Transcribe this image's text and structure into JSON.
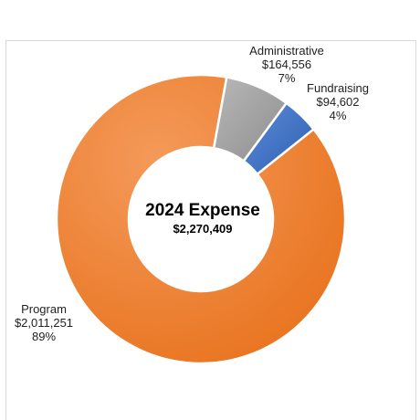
{
  "chart_data": {
    "type": "pie",
    "donut": true,
    "title": "2024 Expense",
    "total": "$2,270,409",
    "slices": [
      {
        "label": "Program",
        "amount": "$2,011,251",
        "value": 2011251,
        "percent": "89%",
        "color": "#ED7D31"
      },
      {
        "label": "Administrative",
        "amount": "$164,556",
        "value": 164556,
        "percent": "7%",
        "color": "#A5A5A5"
      },
      {
        "label": "Fundraising",
        "amount": "$94,602",
        "value": 94602,
        "percent": "4%",
        "color": "#4472C4"
      }
    ],
    "legend": "none"
  }
}
